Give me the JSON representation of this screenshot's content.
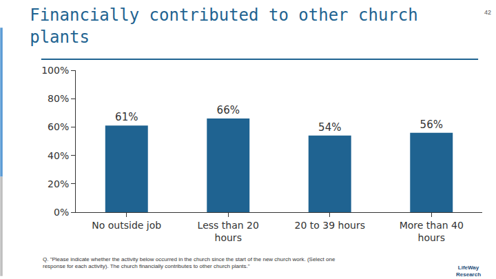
{
  "chart_data": {
    "type": "bar",
    "title": "Financially contributed to other church plants",
    "categories": [
      "No outside job",
      "Less than 20 hours",
      "20 to 39 hours",
      "More than 40 hours"
    ],
    "values": [
      61,
      66,
      54,
      56
    ],
    "value_labels": [
      "61%",
      "66%",
      "54%",
      "56%"
    ],
    "data_labels": true,
    "color": "#1f6391",
    "ylim": [
      0,
      100
    ],
    "yticks": [
      {
        "value": 0,
        "label": "0%"
      },
      {
        "value": 20,
        "label": "20%"
      },
      {
        "value": 40,
        "label": "40%"
      },
      {
        "value": 60,
        "label": "60%"
      },
      {
        "value": 80,
        "label": "80%"
      },
      {
        "value": 100,
        "label": "100%"
      }
    ],
    "grid": false,
    "annotations": [
      "Q. \"Please indicate whether the activity below occurred in the church since the start of the new church work. (Select one response for each activity). The church financially contributes to other church plants.\"",
      "42",
      "LifeWay Research"
    ]
  }
}
